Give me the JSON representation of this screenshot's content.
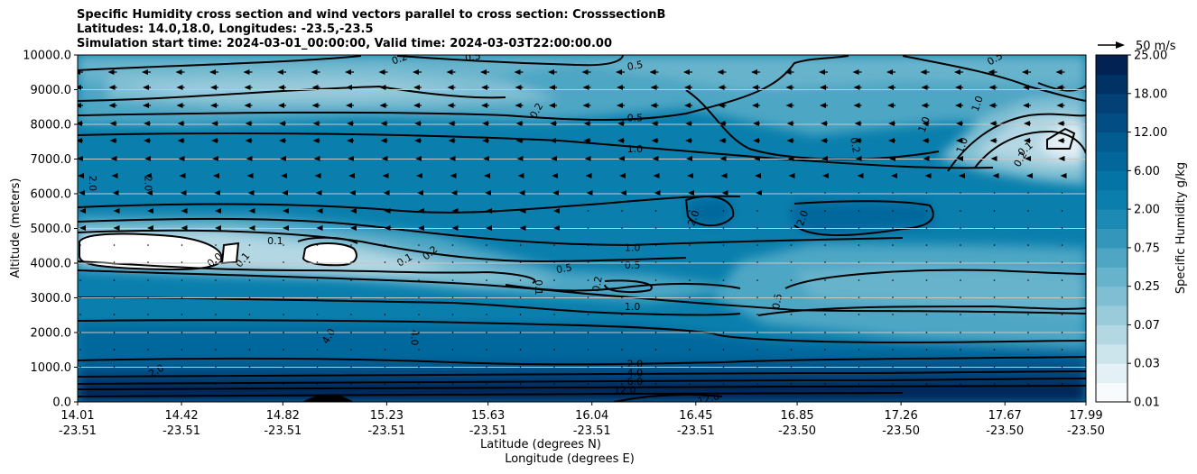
{
  "chart_data": {
    "type": "contour",
    "title_lines": [
      "Specific Humidity cross section and wind vectors parallel to cross section: CrosssectionB",
      "Latitudes: 14.0,18.0, Longitudes: -23.5,-23.5",
      "Simulation start time: 2024-03-01_00:00:00, Valid time: 2024-03-03T22:00:00.00"
    ],
    "ylabel": "Altitude (meters)",
    "xlabel_lat": "Latitude (degrees N)",
    "xlabel_lon": "Longitude (degrees E)",
    "ylim": [
      0,
      10000
    ],
    "yticks": [
      "0.0",
      "1000.0",
      "2000.0",
      "3000.0",
      "4000.0",
      "5000.0",
      "6000.0",
      "7000.0",
      "8000.0",
      "9000.0",
      "10000.0"
    ],
    "ytick_values": [
      0,
      1000,
      2000,
      3000,
      4000,
      5000,
      6000,
      7000,
      8000,
      9000,
      10000
    ],
    "xticks_lat": [
      "14.01",
      "14.42",
      "14.82",
      "15.23",
      "15.63",
      "16.04",
      "16.45",
      "16.85",
      "17.26",
      "17.67",
      "17.99"
    ],
    "xticks_lon": [
      "-23.51",
      "-23.51",
      "-23.51",
      "-23.51",
      "-23.51",
      "-23.51",
      "-23.51",
      "-23.50",
      "-23.50",
      "-23.50",
      "-23.50"
    ],
    "xtick_values": [
      14.01,
      14.42,
      14.82,
      15.23,
      15.63,
      16.04,
      16.45,
      16.85,
      17.26,
      17.67,
      17.99
    ],
    "xlim": [
      14.01,
      17.99
    ],
    "grid": "horizontal",
    "colorbar": {
      "label": "Specific Humidity g/kg",
      "tick_labels": [
        "0.01",
        "0.03",
        "0.07",
        "0.25",
        "0.75",
        "2.00",
        "6.00",
        "12.00",
        "18.00",
        "25.00"
      ],
      "colors": [
        "#f7fbfd",
        "#e3f0f5",
        "#cce4ec",
        "#b3d7e3",
        "#9acbdb",
        "#80bfd3",
        "#67b3cc",
        "#4ea6c4",
        "#3596bb",
        "#1d8ab5",
        "#0a7fad",
        "#0473a5",
        "#03679c",
        "#025b91",
        "#024e84",
        "#024075",
        "#013266",
        "#012252"
      ]
    },
    "quiver_key": "50 m/s",
    "contour_labels": [
      {
        "text": "0.5",
        "lat": 15.57,
        "alt": 9950,
        "rot": -10
      },
      {
        "text": "0.5",
        "lat": 16.21,
        "alt": 9700,
        "rot": -10
      },
      {
        "text": "0.2",
        "lat": 15.28,
        "alt": 9900,
        "rot": -20
      },
      {
        "text": "0.2",
        "lat": 15.82,
        "alt": 8400,
        "rot": -60
      },
      {
        "text": "0.5",
        "lat": 16.21,
        "alt": 8200,
        "rot": 0
      },
      {
        "text": "1.0",
        "lat": 16.21,
        "alt": 7300,
        "rot": 0
      },
      {
        "text": "0.2",
        "lat": 17.08,
        "alt": 7400,
        "rot": 80
      },
      {
        "text": "1.0",
        "lat": 17.35,
        "alt": 8000,
        "rot": -70
      },
      {
        "text": "1.0",
        "lat": 17.56,
        "alt": 8600,
        "rot": -70
      },
      {
        "text": "1.0",
        "lat": 17.5,
        "alt": 7400,
        "rot": -70
      },
      {
        "text": "0.1",
        "lat": 17.75,
        "alt": 7300,
        "rot": -40
      },
      {
        "text": "0.2",
        "lat": 17.73,
        "alt": 7000,
        "rot": -60
      },
      {
        "text": "0.5",
        "lat": 17.63,
        "alt": 9900,
        "rot": -30
      },
      {
        "text": "2.0",
        "lat": 14.07,
        "alt": 6300,
        "rot": 90
      },
      {
        "text": "2.0",
        "lat": 14.29,
        "alt": 6300,
        "rot": 90
      },
      {
        "text": "2.0",
        "lat": 16.44,
        "alt": 5300,
        "rot": -70
      },
      {
        "text": "2.0",
        "lat": 16.87,
        "alt": 5300,
        "rot": -70
      },
      {
        "text": "0.0",
        "lat": 14.55,
        "alt": 4100,
        "rot": -40
      },
      {
        "text": "0.1",
        "lat": 14.66,
        "alt": 4100,
        "rot": -50
      },
      {
        "text": "0.1",
        "lat": 14.79,
        "alt": 4650,
        "rot": 0
      },
      {
        "text": "0.1",
        "lat": 15.3,
        "alt": 4100,
        "rot": -30
      },
      {
        "text": "0.2",
        "lat": 15.4,
        "alt": 4300,
        "rot": -40
      },
      {
        "text": "1.0",
        "lat": 16.2,
        "alt": 4450,
        "rot": 0
      },
      {
        "text": "0.5",
        "lat": 15.93,
        "alt": 3850,
        "rot": -10
      },
      {
        "text": "0.5",
        "lat": 16.2,
        "alt": 3950,
        "rot": 0
      },
      {
        "text": "0.1",
        "lat": 15.83,
        "alt": 3300,
        "rot": 90
      },
      {
        "text": "0.2",
        "lat": 16.06,
        "alt": 3400,
        "rot": -80
      },
      {
        "text": "1.0",
        "lat": 16.2,
        "alt": 2750,
        "rot": 0
      },
      {
        "text": "0.5",
        "lat": 16.77,
        "alt": 2900,
        "rot": -80
      },
      {
        "text": "4.0",
        "lat": 15.0,
        "alt": 1900,
        "rot": -60
      },
      {
        "text": "4.0",
        "lat": 15.34,
        "alt": 1850,
        "rot": 90
      },
      {
        "text": "2.0",
        "lat": 14.32,
        "alt": 900,
        "rot": -30
      },
      {
        "text": "2.0",
        "lat": 16.21,
        "alt": 1100,
        "rot": 0
      },
      {
        "text": "4.0",
        "lat": 16.21,
        "alt": 850,
        "rot": 0
      },
      {
        "text": "6.0",
        "lat": 16.21,
        "alt": 600,
        "rot": 0
      },
      {
        "text": "12.0",
        "lat": 16.17,
        "alt": 350,
        "rot": 0
      },
      {
        "text": "12.0",
        "lat": 16.5,
        "alt": 100,
        "rot": -15
      }
    ]
  }
}
